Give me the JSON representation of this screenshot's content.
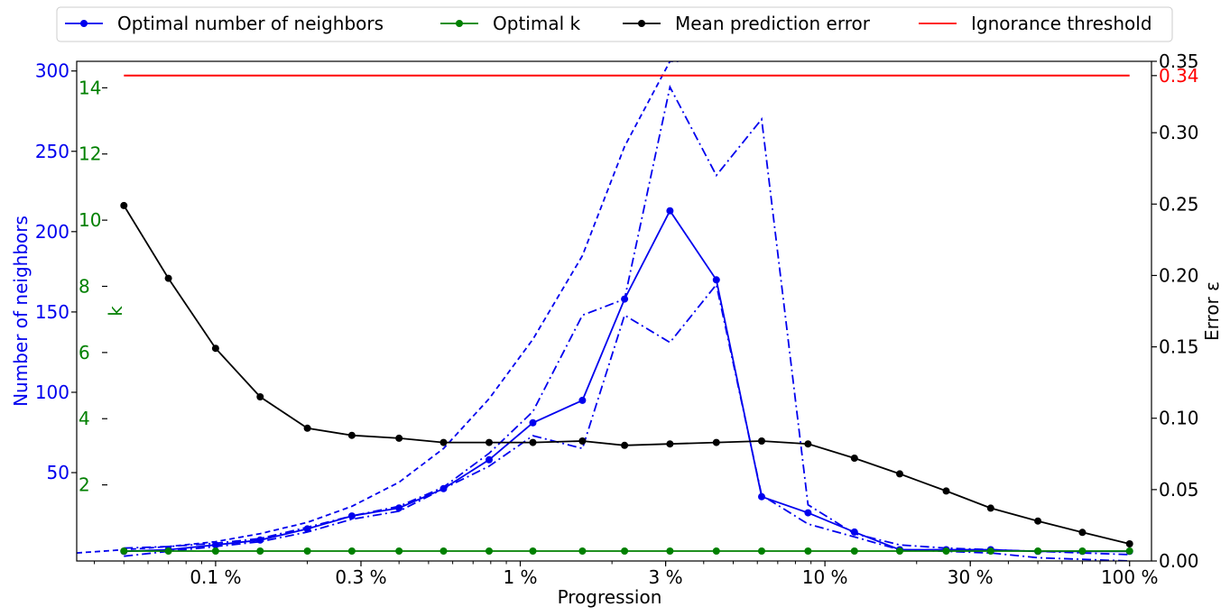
{
  "chart_data": {
    "type": "line",
    "xlabel": "Progression",
    "xscale": "log",
    "xlim_percent": [
      0.035,
      118
    ],
    "x_ticks": [
      {
        "value": 0.1,
        "label": "0.1 %"
      },
      {
        "value": 0.3,
        "label": "0.3 %"
      },
      {
        "value": 1,
        "label": "1 %"
      },
      {
        "value": 3,
        "label": "3 %"
      },
      {
        "value": 10,
        "label": "10 %"
      },
      {
        "value": 30,
        "label": "30 %"
      },
      {
        "value": 100,
        "label": "100 %"
      }
    ],
    "x_percent": [
      0.05,
      0.07,
      0.1,
      0.14,
      0.2,
      0.28,
      0.4,
      0.56,
      0.79,
      1.1,
      1.6,
      2.2,
      3.1,
      4.4,
      6.2,
      8.8,
      12.5,
      17.6,
      25,
      35,
      50,
      70,
      100
    ],
    "axes": {
      "neighbors": {
        "label": "Number of neighbors",
        "color": "#0000ee",
        "ylim": [
          -5,
          306
        ],
        "ticks": [
          50,
          100,
          150,
          200,
          250,
          300
        ]
      },
      "k": {
        "label": "k",
        "color": "#008000",
        "ylim": [
          -0.3,
          14.8
        ],
        "ticks": [
          2,
          4,
          6,
          8,
          10,
          12,
          14
        ]
      },
      "error": {
        "label": "Error ε",
        "color": "#000000",
        "ylim": [
          0,
          0.35
        ],
        "ticks": [
          "0.00",
          "0.05",
          "0.10",
          "0.15",
          "0.20",
          "0.25",
          "0.30",
          "0.35"
        ],
        "threshold_label": "0.34"
      }
    },
    "series": [
      {
        "name": "Optimal number of neighbors",
        "axis": "neighbors",
        "color": "#0000ee",
        "style": "solid",
        "marker": true,
        "values": [
          1,
          2,
          5,
          8,
          15,
          23,
          28,
          40,
          58,
          81,
          95,
          158,
          213,
          170,
          35,
          25,
          13,
          2,
          2,
          2,
          1,
          1,
          1
        ]
      },
      {
        "name": "",
        "axis": "neighbors",
        "color": "#0000ee",
        "style": "dashed",
        "marker": false,
        "x_percent": [
          0.035,
          0.05,
          0.07,
          0.1,
          0.14,
          0.2,
          0.28,
          0.4,
          0.56,
          0.79,
          1.1,
          1.6,
          2.2,
          3.1,
          3.3
        ],
        "values": [
          0,
          2,
          4,
          7,
          12,
          19,
          29,
          44,
          65,
          96,
          133,
          185,
          253,
          306,
          306
        ]
      },
      {
        "name": "",
        "axis": "neighbors",
        "color": "#0000ee",
        "style": "dashdot",
        "marker": false,
        "x_percent": [
          0.05,
          0.07,
          0.1,
          0.14,
          0.2,
          0.28,
          0.4,
          0.56,
          0.79,
          1.1,
          1.6,
          2.2,
          3.1,
          4.4,
          6.2,
          8.8,
          12.5,
          17.6,
          25,
          35,
          50,
          70,
          100
        ],
        "values": [
          -2,
          1,
          4,
          7,
          13,
          21,
          26,
          40,
          54,
          73,
          65,
          148,
          131,
          167,
          36,
          18,
          10,
          2,
          1,
          0,
          -3,
          -4,
          -5
        ]
      },
      {
        "name": "",
        "axis": "neighbors",
        "color": "#0000ee",
        "style": "dashdot",
        "marker": false,
        "x_percent": [
          0.05,
          0.07,
          0.1,
          0.14,
          0.2,
          0.28,
          0.4,
          0.56,
          0.79,
          1.1,
          1.6,
          2.2,
          3.1,
          4.4,
          6.2,
          8.8,
          12.5,
          17.6,
          25,
          35,
          50,
          70,
          100
        ],
        "values": [
          3,
          4,
          6,
          9,
          16,
          23,
          29,
          41,
          62,
          88,
          148,
          158,
          290,
          235,
          270,
          30,
          12,
          5,
          3,
          2,
          1,
          0,
          -1
        ]
      },
      {
        "name": "Optimal k",
        "axis": "k",
        "color": "#008000",
        "style": "solid",
        "marker": true,
        "values": [
          0,
          0,
          0,
          0,
          0,
          0,
          0,
          0,
          0,
          0,
          0,
          0,
          0,
          0,
          0,
          0,
          0,
          0,
          0,
          0,
          0,
          0,
          0
        ]
      },
      {
        "name": "Mean prediction error",
        "axis": "error",
        "color": "#000000",
        "style": "solid",
        "marker": true,
        "values": [
          0.249,
          0.198,
          0.149,
          0.115,
          0.093,
          0.088,
          0.086,
          0.083,
          0.083,
          0.083,
          0.084,
          0.081,
          0.082,
          0.083,
          0.084,
          0.082,
          0.072,
          0.061,
          0.049,
          0.037,
          0.028,
          0.02,
          0.012
        ]
      },
      {
        "name": "Ignorance threshold",
        "axis": "error",
        "color": "#ff0000",
        "style": "solid",
        "marker": false,
        "x_percent": [
          0.05,
          100
        ],
        "values": [
          0.34,
          0.34
        ]
      }
    ],
    "legend": {
      "placement": "top",
      "columns": 4
    }
  }
}
